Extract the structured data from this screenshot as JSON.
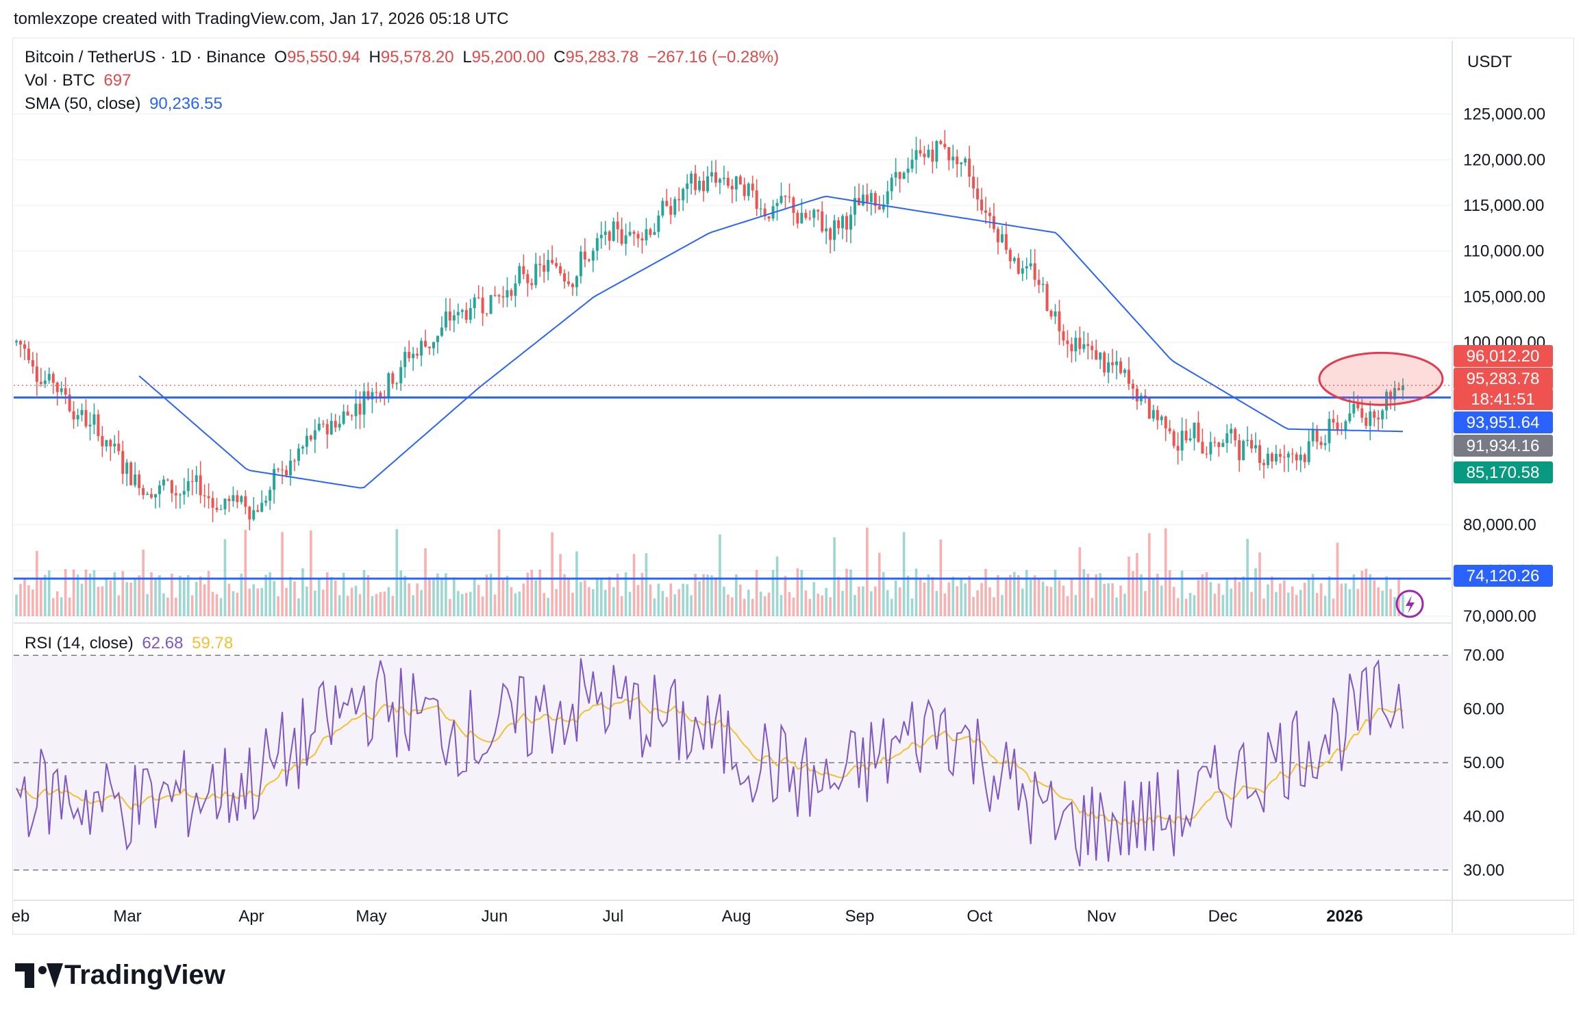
{
  "header": {
    "credit": "tomlexzope created with TradingView.com, Jan 17, 2026 05:18 UTC"
  },
  "legend": {
    "symbol": "Bitcoin / TetherUS · 1D · Binance",
    "o_label": "O",
    "o_value": "95,550.94",
    "h_label": "H",
    "h_value": "95,578.20",
    "l_label": "L",
    "l_value": "95,200.00",
    "c_label": "C",
    "c_value": "95,283.78",
    "change": "−267.16 (−0.28%)",
    "vol_label": "Vol · BTC",
    "vol_value": "697",
    "sma_label": "SMA (50, close)",
    "sma_value": "90,236.55",
    "rsi_label": "RSI (14, close)",
    "rsi_value": "62.68",
    "rsi_ma_value": "59.78"
  },
  "price_axis": {
    "currency": "USDT",
    "ticks": [
      "125,000.00",
      "120,000.00",
      "115,000.00",
      "110,000.00",
      "105,000.00",
      "100,000.00",
      "80,000.00",
      "75,000.00",
      "70,000.00"
    ],
    "tick_values": [
      125000,
      120000,
      115000,
      110000,
      105000,
      100000,
      80000,
      75000,
      70000
    ],
    "labels": [
      {
        "text": "96,012.20",
        "value": 96012.2,
        "color": "#ef5350"
      },
      {
        "text": "95,283.78",
        "value": 95283.78,
        "color": "#ef5350"
      },
      {
        "text": "18:41:51",
        "value": 94200,
        "color": "#ef5350"
      },
      {
        "text": "93,951.64",
        "value": 93951.64,
        "color": "#2962ff"
      },
      {
        "text": "91,934.16",
        "value": 91934.16,
        "color": "#787b86"
      },
      {
        "text": "85,170.58",
        "value": 85170.58,
        "color": "#089981"
      },
      {
        "text": "74,120.26",
        "value": 74120.26,
        "color": "#2962ff"
      }
    ]
  },
  "rsi_axis": {
    "ticks": [
      "70.00",
      "60.00",
      "50.00",
      "40.00",
      "30.00"
    ],
    "tick_values": [
      70,
      60,
      50,
      40,
      30
    ]
  },
  "time_axis": {
    "labels": [
      "eb",
      "Mar",
      "Apr",
      "May",
      "Jun",
      "Jul",
      "Aug",
      "Sep",
      "Oct",
      "Nov",
      "Dec",
      "2026"
    ]
  },
  "colors": {
    "up": "#26a69a",
    "down": "#ef5350",
    "sma": "#2962ff",
    "rsi": "#7e57c2",
    "rsi_ma": "#f2c12e",
    "hline": "#2962ff"
  },
  "footer": {
    "brand": "TradingView"
  },
  "chart_data": {
    "type": "line",
    "x": [
      "Feb",
      "Mar",
      "Apr",
      "May",
      "Jun",
      "Jul",
      "Aug",
      "Sep",
      "Oct",
      "Nov",
      "Dec",
      "2026",
      "Jan"
    ],
    "series": [
      {
        "values": [
          100000,
          85000,
          82000,
          95000,
          105000,
          110000,
          118000,
          112000,
          122000,
          102000,
          90000,
          88000,
          95283.78
        ]
      },
      {
        "name": "SMA (50, close)",
        "values": [
          99000,
          97000,
          86000,
          84000,
          95000,
          105000,
          112000,
          116000,
          114000,
          112000,
          98000,
          90500,
          90236.55
        ]
      },
      {
        "name": "RSI (14, close)",
        "values": [
          45,
          42,
          46,
          62,
          55,
          62,
          55,
          45,
          58,
          38,
          40,
          52,
          62.68
        ]
      }
    ],
    "horizontal_lines": [
      93951.64,
      74120.26
    ],
    "last_price": 95283.78,
    "ylim": [
      70000,
      127000
    ],
    "rsi_ylim": [
      25,
      75
    ]
  }
}
